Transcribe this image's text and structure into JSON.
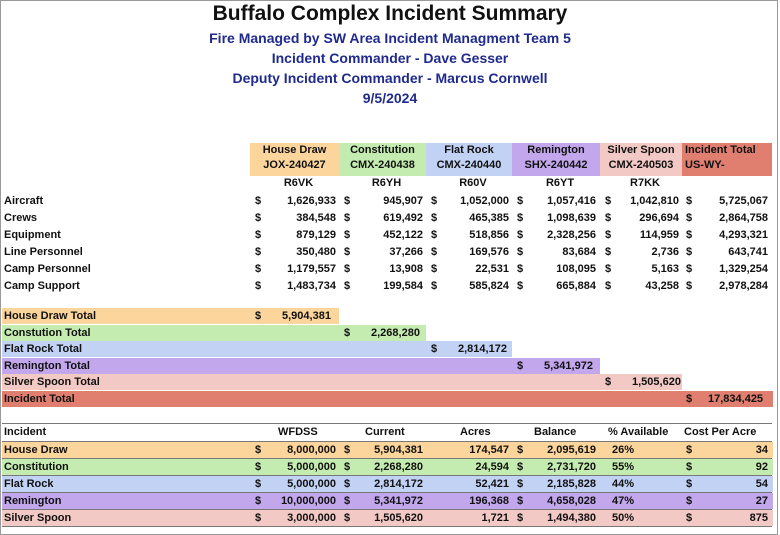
{
  "title": "Buffalo Complex Incident Summary",
  "subtitles": [
    "Fire Managed by SW Area Incident Managment Team 5",
    "Incident Commander - Dave Gesser",
    "Deputy Incident Commander - Marcus Cornwell",
    "9/5/2024"
  ],
  "colors": {
    "house_draw": "#fbd59c",
    "constitution": "#c5ecb0",
    "flat_rock": "#c2d2f4",
    "remington": "#c3a7ec",
    "silver_spoon": "#f2c9c5",
    "incident_total": "#e07f70",
    "subtitle_blue": "#1f2a8c"
  },
  "incidents": [
    {
      "name": "House Draw",
      "code": "JOX-240427",
      "sub": "R6VK"
    },
    {
      "name": "Constitution",
      "code": "CMX-240438",
      "sub": "R6YH"
    },
    {
      "name": "Flat Rock",
      "code": "CMX-240440",
      "sub": "R60V"
    },
    {
      "name": "Remington",
      "code": "SHX-240442",
      "sub": "R6YT"
    },
    {
      "name": "Silver Spoon",
      "code": "CMX-240503",
      "sub": "R7KK"
    },
    {
      "name": "Incident Total",
      "code": "US-WY-",
      "sub": ""
    }
  ],
  "cost_rows": [
    {
      "label": "Aircraft",
      "values": [
        "1,626,933",
        "945,907",
        "1,052,000",
        "1,057,416",
        "1,042,810",
        "5,725,067"
      ]
    },
    {
      "label": "Crews",
      "values": [
        "384,548",
        "619,492",
        "465,385",
        "1,098,639",
        "296,694",
        "2,864,758"
      ]
    },
    {
      "label": "Equipment",
      "values": [
        "879,129",
        "452,122",
        "518,856",
        "2,328,256",
        "114,959",
        "4,293,321"
      ]
    },
    {
      "label": "Line Personnel",
      "values": [
        "350,480",
        "37,266",
        "169,576",
        "83,684",
        "2,736",
        "643,741"
      ]
    },
    {
      "label": "Camp Personnel",
      "values": [
        "1,179,557",
        "13,908",
        "22,531",
        "108,095",
        "5,163",
        "1,329,254"
      ]
    },
    {
      "label": "Camp Support",
      "values": [
        "1,483,734",
        "199,584",
        "585,824",
        "665,884",
        "43,258",
        "2,978,284"
      ]
    }
  ],
  "totals": [
    {
      "label": "House Draw Total",
      "value": "5,904,381"
    },
    {
      "label": "Constution Total",
      "value": "2,268,280"
    },
    {
      "label": "Flat Rock Total",
      "value": "2,814,172"
    },
    {
      "label": "Remington Total",
      "value": "5,341,972"
    },
    {
      "label": "Silver Spoon Total",
      "value": "1,505,620"
    },
    {
      "label": "Incident Total",
      "value": "17,834,425"
    }
  ],
  "currency": "$",
  "summary_headers": [
    "Incident",
    "WFDSS",
    "Current",
    "Acres",
    "Balance",
    "% Available",
    "Cost Per Acre"
  ],
  "summary_rows": [
    {
      "incident": "House Draw",
      "wfdss": "8,000,000",
      "current": "5,904,381",
      "acres": "174,547",
      "balance": "2,095,619",
      "pct": "26%",
      "cpa": "34"
    },
    {
      "incident": "Constitution",
      "wfdss": "5,000,000",
      "current": "2,268,280",
      "acres": "24,594",
      "balance": "2,731,720",
      "pct": "55%",
      "cpa": "92"
    },
    {
      "incident": "Flat Rock",
      "wfdss": "5,000,000",
      "current": "2,814,172",
      "acres": "52,421",
      "balance": "2,185,828",
      "pct": "44%",
      "cpa": "54"
    },
    {
      "incident": "Remington",
      "wfdss": "10,000,000",
      "current": "5,341,972",
      "acres": "196,368",
      "balance": "4,658,028",
      "pct": "47%",
      "cpa": "27"
    },
    {
      "incident": "Silver Spoon",
      "wfdss": "3,000,000",
      "current": "1,505,620",
      "acres": "1,721",
      "balance": "1,494,380",
      "pct": "50%",
      "cpa": "875"
    }
  ]
}
